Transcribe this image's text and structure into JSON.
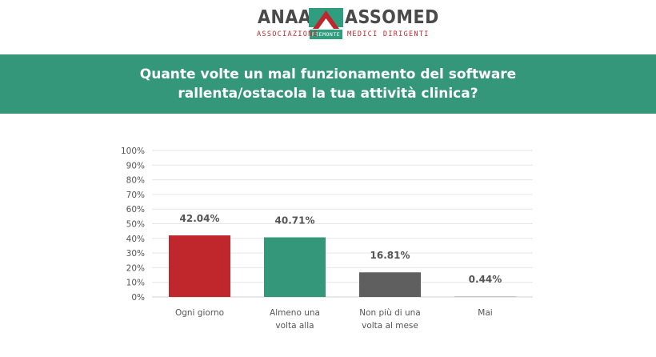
{
  "logo": {
    "word_left": "ANAAO",
    "word_right": "ASSOMED",
    "sub_left": "ASSOCIAZIONE",
    "badge": "PIEMONTE",
    "sub_right": "MEDICI DIRIGENTI",
    "colors": {
      "green": "#2f9e7e",
      "red": "#c0272d"
    }
  },
  "banner": {
    "background": "#34977a",
    "title": "Quante volte un mal funzionamento del software rallenta/ostacola la tua attività clinica?"
  },
  "chart_data": {
    "type": "bar",
    "categories": [
      [
        "Ogni giorno"
      ],
      [
        "Almeno una",
        "volta alla"
      ],
      [
        "Non più di una",
        "volta al mese"
      ],
      [
        "Mai"
      ]
    ],
    "values": [
      42.04,
      40.71,
      16.81,
      0.44
    ],
    "data_labels": [
      "42.04%",
      "40.71%",
      "16.81%",
      "0.44%"
    ],
    "colors": [
      "#c0272d",
      "#34977a",
      "#5f5f5f",
      "#b9b9b9"
    ],
    "ylim": [
      0,
      100
    ],
    "yticks": [
      0,
      10,
      20,
      30,
      40,
      50,
      60,
      70,
      80,
      90,
      100
    ],
    "ytick_labels": [
      "0%",
      "10%",
      "20%",
      "30%",
      "40%",
      "50%",
      "60%",
      "70%",
      "80%",
      "90%",
      "100%"
    ],
    "grid": true,
    "legend": "none"
  }
}
